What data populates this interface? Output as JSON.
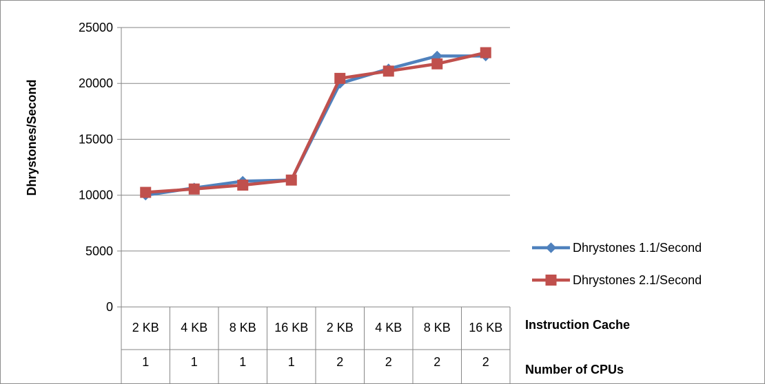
{
  "chart_data": {
    "type": "line",
    "title": "",
    "ylabel": "Dhrystones/Second",
    "ylim": [
      0,
      25000
    ],
    "yticks": [
      0,
      5000,
      10000,
      15000,
      20000,
      25000
    ],
    "grid": true,
    "legend_position": "right",
    "category_levels": [
      {
        "label": "Instruction Cache",
        "values": [
          "2 KB",
          "4 KB",
          "8 KB",
          "16 KB",
          "2 KB",
          "4 KB",
          "8 KB",
          "16 KB"
        ]
      },
      {
        "label": "Number of CPUs",
        "values": [
          "1",
          "1",
          "1",
          "1",
          "2",
          "2",
          "2",
          "2"
        ]
      }
    ],
    "series": [
      {
        "name": "Dhrystones 1.1/Second",
        "color": "#4f81bd",
        "marker": "diamond",
        "values": [
          10000,
          10650,
          11250,
          11350,
          20000,
          21300,
          22450,
          22450
        ]
      },
      {
        "name": "Dhrystones 2.1/Second",
        "color": "#c0504d",
        "marker": "square",
        "values": [
          10250,
          10550,
          10900,
          11350,
          20450,
          21100,
          21750,
          22750
        ]
      }
    ]
  }
}
